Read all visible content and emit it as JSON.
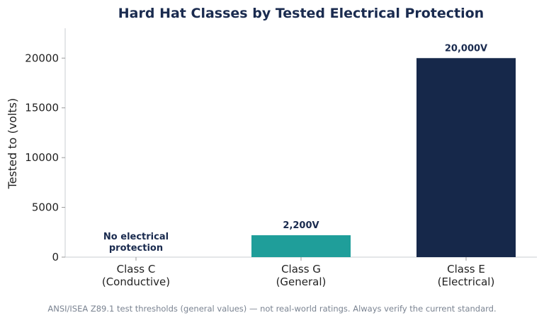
{
  "chart_data": {
    "type": "bar",
    "title": "Hard Hat Classes by Tested Electrical Protection",
    "xlabel": "",
    "ylabel": "Tested to (volts)",
    "categories": [
      [
        "Class C",
        "(Conductive)"
      ],
      [
        "Class G",
        "(General)"
      ],
      [
        "Class E",
        "(Electrical)"
      ]
    ],
    "values": [
      0,
      2200,
      20000
    ],
    "data_labels": [
      [
        "No electrical",
        "protection"
      ],
      [
        "2,200V"
      ],
      [
        "20,000V"
      ]
    ],
    "colors": [
      "#1f9e9a",
      "#1f9e9a",
      "#16284a"
    ],
    "ylim": [
      0,
      23000
    ],
    "yticks": [
      0,
      5000,
      10000,
      15000,
      20000
    ],
    "grid": false,
    "legend": "none"
  },
  "footnote": "ANSI/ISEA Z89.1 test thresholds (general values) — not real-world ratings. Always verify the current standard."
}
